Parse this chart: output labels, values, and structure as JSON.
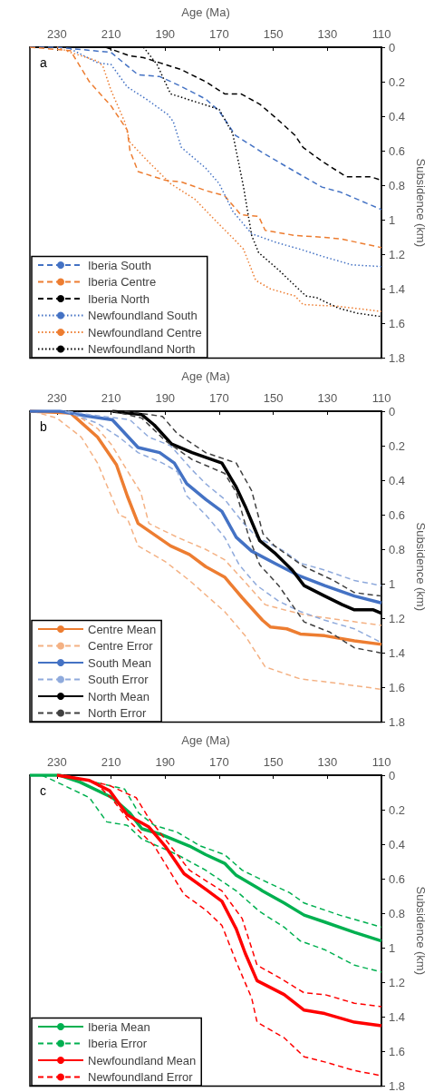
{
  "chart_data": [
    {
      "type": "line",
      "annotations": [
        "a"
      ],
      "xlabel": "Age (Ma)",
      "ylabel": "Subsidence (km)",
      "xlim": [
        240,
        110
      ],
      "xticks": [
        230,
        210,
        190,
        170,
        150,
        130,
        110
      ],
      "ylim": [
        1.8,
        0
      ],
      "yticks": [
        0,
        0.2,
        0.4,
        0.6,
        0.8,
        1,
        1.2,
        1.4,
        1.6,
        1.8
      ],
      "grid": false,
      "legend": "bottom left",
      "marker": "none",
      "series": [
        {
          "name": "Iberia South",
          "color": "#4472c4",
          "line_style": "dashed",
          "x": [
            240,
            230,
            210,
            200,
            192,
            185,
            175,
            170,
            164,
            153,
            142,
            132,
            125,
            110
          ],
          "values": [
            0,
            0,
            0.03,
            0.16,
            0.17,
            0.22,
            0.3,
            0.37,
            0.51,
            0.62,
            0.72,
            0.81,
            0.84,
            0.94
          ]
        },
        {
          "name": "Iberia Centre",
          "color": "#ed7d31",
          "line_style": "dashed",
          "x": [
            240,
            225,
            218,
            210,
            204,
            203,
            200,
            190,
            184,
            175,
            168,
            162,
            155.4,
            153,
            142,
            132,
            125,
            110
          ],
          "values": [
            0,
            0.02,
            0.2,
            0.34,
            0.48,
            0.6,
            0.72,
            0.77,
            0.78,
            0.83,
            0.86,
            0.97,
            0.98,
            1.06,
            1.09,
            1.1,
            1.11,
            1.16
          ]
        },
        {
          "name": "Iberia North",
          "color": "#000000",
          "line_style": "dashed",
          "x": [
            212,
            203,
            198,
            192,
            184,
            175,
            168,
            162,
            155,
            149,
            142,
            139,
            132,
            123,
            114,
            110
          ],
          "values": [
            0,
            0.05,
            0.06,
            0.09,
            0.13,
            0.2,
            0.27,
            0.27,
            0.33,
            0.41,
            0.51,
            0.58,
            0.66,
            0.75,
            0.75,
            0.77
          ]
        },
        {
          "name": "Newfoundland South",
          "color": "#4472c4",
          "line_style": "dotted",
          "x": [
            225,
            215,
            210,
            204,
            197,
            189,
            187,
            184,
            175,
            170,
            165,
            158,
            149,
            140,
            132,
            121,
            110
          ],
          "values": [
            0.01,
            0.09,
            0.1,
            0.23,
            0.3,
            0.39,
            0.43,
            0.58,
            0.7,
            0.79,
            0.95,
            1.08,
            1.13,
            1.17,
            1.21,
            1.26,
            1.27
          ]
        },
        {
          "name": "Newfoundland Centre",
          "color": "#ed7d31",
          "line_style": "dotted",
          "x": [
            230,
            225,
            215,
            213,
            210,
            205,
            203,
            197,
            188,
            179,
            171,
            164,
            161,
            156.5,
            151,
            142,
            139,
            126,
            110
          ],
          "values": [
            0,
            0.03,
            0.08,
            0.11,
            0.25,
            0.43,
            0.55,
            0.65,
            0.79,
            0.88,
            1.01,
            1.12,
            1.17,
            1.35,
            1.4,
            1.44,
            1.49,
            1.5,
            1.53
          ]
        },
        {
          "name": "Newfoundland North",
          "color": "#000000",
          "line_style": "dotted",
          "x": [
            198,
            193,
            188,
            180,
            170,
            165,
            161,
            158,
            155.4,
            148,
            138,
            134,
            126,
            119,
            110
          ],
          "values": [
            0,
            0.1,
            0.27,
            0.31,
            0.36,
            0.5,
            0.81,
            1.09,
            1.19,
            1.29,
            1.44,
            1.45,
            1.51,
            1.54,
            1.56
          ]
        }
      ]
    },
    {
      "type": "line",
      "annotations": [
        "b"
      ],
      "xlabel": "Age (Ma)",
      "ylabel": "Subsidence (km)",
      "xlim": [
        240,
        110
      ],
      "xticks": [
        230,
        210,
        190,
        170,
        150,
        130,
        110
      ],
      "ylim": [
        1.8,
        0
      ],
      "yticks": [
        0,
        0.2,
        0.4,
        0.6,
        0.8,
        1,
        1.2,
        1.4,
        1.6,
        1.8
      ],
      "grid": false,
      "legend": "bottom left",
      "marker": "none",
      "series": [
        {
          "name": "Centre Mean",
          "color": "#ed7d31",
          "line_style": "solid",
          "x": [
            240,
            225,
            215,
            208,
            204,
            200,
            188,
            181,
            175,
            168,
            161.5,
            154,
            151,
            145,
            140,
            131,
            120,
            110
          ],
          "values": [
            0,
            0.01,
            0.15,
            0.31,
            0.49,
            0.65,
            0.78,
            0.83,
            0.9,
            0.96,
            1.08,
            1.21,
            1.25,
            1.26,
            1.29,
            1.3,
            1.33,
            1.35
          ]
        },
        {
          "name": "Centre Error",
          "color": "#f4b183",
          "line_style": "dashed",
          "x": [
            224,
            215,
            210,
            203,
            199,
            196,
            185.5,
            175,
            168,
            160.4,
            153,
            146,
            138,
            129,
            110
          ],
          "values": [
            0.01,
            0.1,
            0.19,
            0.37,
            0.47,
            0.65,
            0.73,
            0.8,
            0.86,
            0.99,
            1.12,
            1.15,
            1.18,
            1.2,
            1.24
          ]
        },
        {
          "color": "#f4b183",
          "line_style": "dashed",
          "x": [
            239,
            230,
            221,
            215,
            207,
            204,
            200,
            190,
            181,
            168,
            160.4,
            153,
            140,
            129,
            110
          ],
          "values": [
            0,
            0.04,
            0.15,
            0.3,
            0.6,
            0.62,
            0.78,
            0.87,
            0.98,
            1.16,
            1.3,
            1.48,
            1.55,
            1.57,
            1.61
          ]
        },
        {
          "name": "South Mean",
          "color": "#4472c4",
          "line_style": "solid",
          "x": [
            240,
            229,
            218,
            209.5,
            200,
            192,
            186.6,
            182,
            175,
            169,
            163.7,
            158,
            149.5,
            140.8,
            131,
            120,
            110
          ],
          "values": [
            0,
            0,
            0.03,
            0.05,
            0.21,
            0.24,
            0.3,
            0.42,
            0.51,
            0.58,
            0.73,
            0.81,
            0.88,
            0.95,
            1.01,
            1.07,
            1.11
          ]
        },
        {
          "name": "South Error",
          "color": "#8faadc",
          "line_style": "dashed",
          "x": [
            226,
            218,
            203,
            196,
            188,
            180,
            175,
            168,
            161.5,
            156,
            146,
            140,
            131,
            120,
            110
          ],
          "values": [
            0,
            0.02,
            0.05,
            0.15,
            0.2,
            0.34,
            0.42,
            0.51,
            0.64,
            0.73,
            0.81,
            0.88,
            0.92,
            0.98,
            1.01
          ]
        },
        {
          "color": "#8faadc",
          "line_style": "dashed",
          "x": [
            227,
            215,
            207,
            200,
            191,
            185.5,
            182,
            175,
            168,
            162.6,
            156,
            148,
            140,
            131,
            120,
            110
          ],
          "values": [
            0,
            0.07,
            0.15,
            0.24,
            0.3,
            0.35,
            0.49,
            0.6,
            0.73,
            0.89,
            1.01,
            1.1,
            1.16,
            1.21,
            1.26,
            1.34
          ]
        },
        {
          "name": "North Mean",
          "color": "#000000",
          "line_style": "solid",
          "x": [
            209.5,
            198.6,
            194,
            187.6,
            180,
            169,
            163.7,
            160.4,
            155,
            149.5,
            143,
            138.6,
            131,
            124.5,
            120,
            113,
            110
          ],
          "values": [
            0,
            0.02,
            0.08,
            0.19,
            0.24,
            0.3,
            0.44,
            0.55,
            0.75,
            0.82,
            0.92,
            1.01,
            1.07,
            1.12,
            1.15,
            1.15,
            1.17
          ]
        },
        {
          "name": "North Error",
          "color": "#404040",
          "line_style": "dashed",
          "x": [
            205,
            191,
            185.5,
            175,
            163.7,
            158,
            153.8,
            149.5,
            138.6,
            127.7,
            120,
            110
          ],
          "values": [
            0,
            0.03,
            0.13,
            0.24,
            0.3,
            0.46,
            0.71,
            0.78,
            0.9,
            0.98,
            1.05,
            1.07
          ]
        },
        {
          "color": "#404040",
          "line_style": "dashed",
          "x": [
            209.5,
            198.6,
            190,
            180,
            168,
            163.7,
            159,
            155,
            148,
            138.6,
            129,
            120,
            110
          ],
          "values": [
            0,
            0.04,
            0.17,
            0.28,
            0.36,
            0.47,
            0.73,
            0.89,
            1.01,
            1.22,
            1.28,
            1.37,
            1.4
          ]
        }
      ]
    },
    {
      "type": "line",
      "annotations": [
        "c"
      ],
      "xlabel": "Age (Ma)",
      "ylabel": "Subsidence (km)",
      "xlim": [
        240,
        110
      ],
      "xticks": [
        230,
        210,
        190,
        170,
        150,
        130,
        110
      ],
      "ylim": [
        1.8,
        0
      ],
      "yticks": [
        0,
        0.2,
        0.4,
        0.6,
        0.8,
        1,
        1.2,
        1.4,
        1.6,
        1.8
      ],
      "grid": false,
      "legend": "bottom left",
      "marker": "none",
      "series": [
        {
          "name": "Iberia Mean",
          "color": "#00b050",
          "line_style": "solid",
          "x": [
            240,
            229,
            221.5,
            209.5,
            203,
            198.6,
            192,
            181,
            175,
            168,
            163.7,
            155,
            154,
            146,
            138.6,
            131,
            120,
            110
          ],
          "values": [
            0,
            0,
            0.04,
            0.13,
            0.22,
            0.31,
            0.34,
            0.41,
            0.46,
            0.51,
            0.58,
            0.66,
            0.67,
            0.74,
            0.81,
            0.85,
            0.91,
            0.96
          ]
        },
        {
          "name": "Iberia Error",
          "color": "#00b050",
          "line_style": "dashed",
          "x": [
            225,
            210.5,
            205,
            199.7,
            194,
            185.5,
            177,
            168,
            161.5,
            155,
            144,
            138.6,
            125.5,
            110
          ],
          "values": [
            0.01,
            0.06,
            0.08,
            0.22,
            0.29,
            0.33,
            0.41,
            0.46,
            0.55,
            0.6,
            0.68,
            0.74,
            0.81,
            0.88
          ]
        },
        {
          "color": "#00b050",
          "line_style": "dashed",
          "x": [
            235.6,
            230,
            218,
            211.6,
            204,
            198.6,
            185.5,
            175,
            163.7,
            155,
            146,
            140,
            131,
            120,
            110
          ],
          "values": [
            0,
            0.04,
            0.13,
            0.27,
            0.29,
            0.37,
            0.46,
            0.55,
            0.67,
            0.79,
            0.88,
            0.96,
            1.01,
            1.1,
            1.14
          ]
        },
        {
          "name": "Newfoundland Mean",
          "color": "#ff0000",
          "line_style": "solid",
          "x": [
            230,
            218,
            210.5,
            204,
            196,
            190,
            183,
            175,
            169,
            163.7,
            160.4,
            156,
            146,
            138.6,
            131,
            120,
            110
          ],
          "values": [
            0,
            0.03,
            0.09,
            0.23,
            0.3,
            0.41,
            0.57,
            0.66,
            0.73,
            0.89,
            1.03,
            1.19,
            1.27,
            1.36,
            1.38,
            1.43,
            1.45
          ]
        },
        {
          "name": "Newfoundland Error",
          "color": "#ff0000",
          "line_style": "dashed",
          "x": [
            227,
            210.5,
            205,
            200.7,
            196,
            190,
            181,
            169,
            161.5,
            156,
            148,
            138.6,
            131,
            120,
            110
          ],
          "values": [
            0,
            0.06,
            0.1,
            0.13,
            0.25,
            0.37,
            0.55,
            0.67,
            0.83,
            1.1,
            1.17,
            1.26,
            1.27,
            1.32,
            1.34
          ]
        },
        {
          "color": "#ff0000",
          "line_style": "dashed",
          "x": [
            229,
            216,
            209.5,
            203,
            194,
            183,
            175,
            169,
            163.7,
            158,
            156,
            146,
            138.6,
            131,
            120,
            110
          ],
          "values": [
            0,
            0.04,
            0.14,
            0.27,
            0.41,
            0.69,
            0.78,
            0.87,
            1.08,
            1.29,
            1.43,
            1.52,
            1.63,
            1.66,
            1.71,
            1.74
          ]
        }
      ]
    }
  ]
}
